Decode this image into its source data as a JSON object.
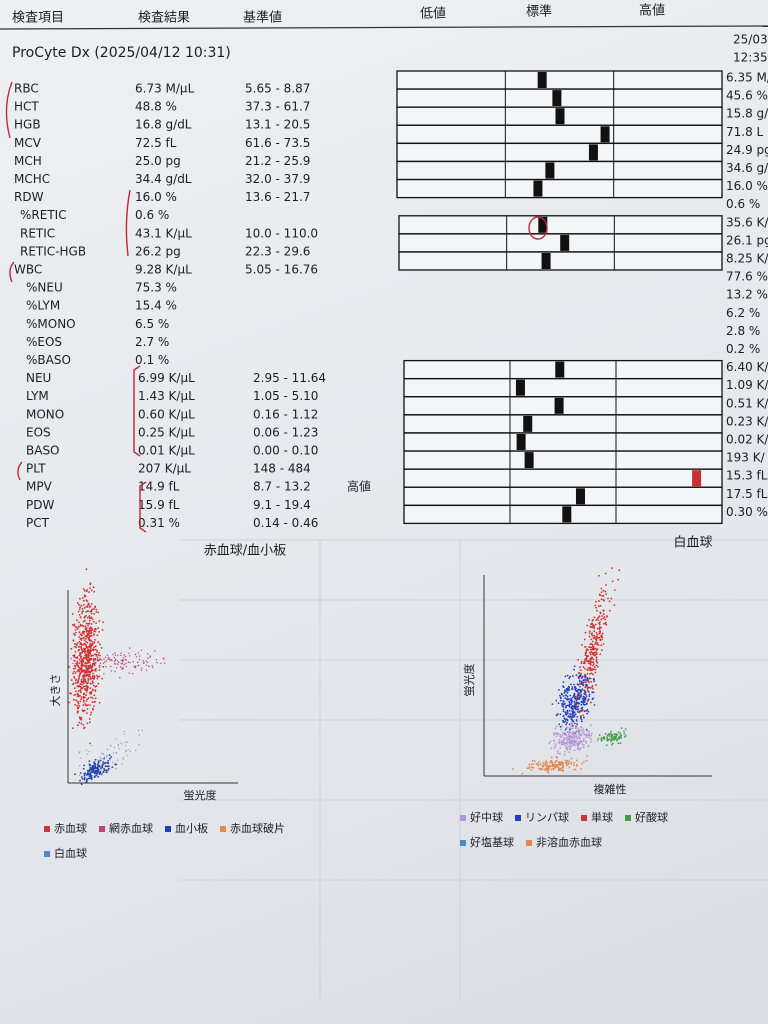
{
  "header": {
    "columns": [
      "検査項目",
      "検査結果",
      "基準値"
    ],
    "scale": [
      "低値",
      "標準",
      "高値"
    ]
  },
  "instrument": "ProCyte Dx (2025/04/12 10:31)",
  "previous": {
    "date": "25/03",
    "time": "12:35"
  },
  "rows": [
    {
      "name": "RBC",
      "result": "6.73 M/µL",
      "range": "5.65 - 8.87",
      "previous": "6.35 M/"
    },
    {
      "name": "HCT",
      "result": "48.8 %",
      "range": "37.3 - 61.7",
      "previous": "45.6 %"
    },
    {
      "name": "HGB",
      "result": "16.8 g/dL",
      "range": "13.1 - 20.5",
      "previous": "15.8 g/"
    },
    {
      "name": "MCV",
      "result": "72.5 fL",
      "range": "61.6 - 73.5",
      "previous": "71.8 L"
    },
    {
      "name": "MCH",
      "result": "25.0 pg",
      "range": "21.2 - 25.9",
      "previous": "24.9 pg"
    },
    {
      "name": "MCHC",
      "result": "34.4 g/dL",
      "range": "32.0 - 37.9",
      "previous": "34.6 g/"
    },
    {
      "name": "RDW",
      "result": "16.0 %",
      "range": "13.6 - 21.7",
      "previous": "16.0 %"
    },
    {
      "name": "%RETIC",
      "result": "0.6 %",
      "previous": "0.6 %"
    },
    {
      "name": "RETIC",
      "result": "43.1 K/µL",
      "range": "10.0 - 110.0",
      "previous": "35.6 K/"
    },
    {
      "name": "RETIC-HGB",
      "result": "26.2 pg",
      "range": "22.3 - 29.6",
      "previous": "26.1 pg"
    },
    {
      "name": "WBC",
      "result": "9.28 K/µL",
      "range": "5.05 - 16.76",
      "previous": "8.25 K/"
    },
    {
      "name": "%NEU",
      "result": "75.3 %",
      "previous": "77.6 %"
    },
    {
      "name": "%LYM",
      "result": "15.4 %",
      "previous": "13.2 %"
    },
    {
      "name": "%MONO",
      "result": "6.5 %",
      "previous": "6.2 %"
    },
    {
      "name": "%EOS",
      "result": "2.7 %",
      "previous": "2.8 %"
    },
    {
      "name": "%BASO",
      "result": "0.1 %",
      "previous": "0.2 %"
    },
    {
      "name": "NEU",
      "result": "6.99 K/µL",
      "range": "2.95 - 11.64",
      "previous": "6.40 K/"
    },
    {
      "name": "LYM",
      "result": "1.43 K/µL",
      "range": "1.05 - 5.10",
      "previous": "1.09 K/"
    },
    {
      "name": "MONO",
      "result": "0.60 K/µL",
      "range": "0.16 - 1.12",
      "previous": "0.51 K/"
    },
    {
      "name": "EOS",
      "result": "0.25 K/µL",
      "range": "0.06 - 1.23",
      "previous": "0.23 K/"
    },
    {
      "name": "BASO",
      "result": "0.01 K/µL",
      "range": "0.00 - 0.10",
      "previous": "0.02 K/"
    },
    {
      "name": "PLT",
      "result": "207 K/µL",
      "range": "148 - 484",
      "previous": "193 K/"
    },
    {
      "name": "MPV",
      "result": "14.9 fL",
      "range": "8.7 - 13.2",
      "flag": "高値",
      "previous": "15.3 fL"
    },
    {
      "name": "PDW",
      "result": "15.9 fL",
      "range": "9.1 - 19.4",
      "previous": "17.5 fL"
    },
    {
      "name": "PCT",
      "result": "0.31 %",
      "range": "0.14 - 0.46",
      "previous": "0.30 %"
    }
  ],
  "charts": [
    {
      "title": "赤血球/血小板",
      "x_label": "蛍光度",
      "y_label": "大きさ",
      "legend": [
        "赤血球",
        "網赤血球",
        "血小板",
        "赤血球破片",
        "白血球"
      ]
    },
    {
      "title": "白血球",
      "x_label": "複雑性",
      "y_label": "蛍光度",
      "legend": [
        "好中球",
        "リンパ球",
        "単球",
        "好酸球",
        "好塩基球",
        "非溶血赤血球"
      ]
    }
  ]
}
